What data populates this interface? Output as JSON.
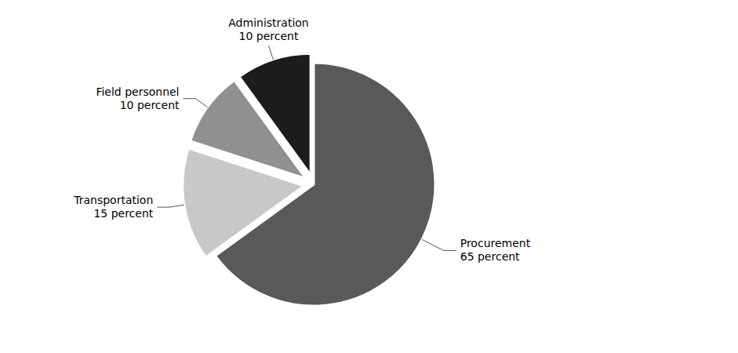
{
  "chart_data": {
    "type": "pie",
    "categories": [
      "Procurement",
      "Transportation",
      "Field personnel",
      "Administration"
    ],
    "values": [
      65,
      15,
      10,
      10
    ],
    "value_labels": [
      "65 percent",
      "15 percent",
      "10 percent",
      "10 percent"
    ],
    "data_labels": true,
    "colors": [
      "#595959",
      "#c8c8c8",
      "#909090",
      "#1c1c1c"
    ]
  }
}
